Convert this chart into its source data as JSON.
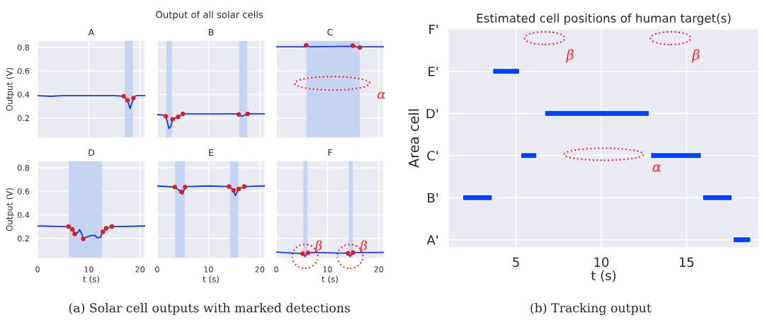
{
  "chart_data": [
    {
      "type": "line",
      "title": "A",
      "ylabel": "Output (V)",
      "xlim": [
        0,
        21
      ],
      "xticks": [
        0,
        10,
        20
      ],
      "ylim": [
        0.03,
        0.86
      ],
      "yticks": [
        0.2,
        0.4,
        0.6,
        0.8
      ],
      "grid": true,
      "tick_labels": "y",
      "annotations": [
        "Output of all solar cells",
        "(a) Solar cell outputs with marked detections"
      ],
      "bands": [
        {
          "axis": "x",
          "from": 17.0,
          "to": 18.6,
          "color": "#c5d4f0"
        }
      ],
      "series": [
        {
          "type": "line",
          "color": "#0a3cff",
          "x": [
            0,
            2.5,
            5,
            10,
            15,
            16.8,
            17.55,
            18.05,
            18.7,
            19.2,
            21
          ],
          "values": [
            0.39,
            0.385,
            0.39,
            0.39,
            0.39,
            0.385,
            0.35,
            0.28,
            0.37,
            0.39,
            0.39
          ]
        },
        {
          "type": "scatter",
          "color": "#e41a1c",
          "marker": "circle",
          "x": [
            16.8,
            17.55,
            18.7
          ],
          "values": [
            0.385,
            0.35,
            0.37
          ]
        }
      ]
    },
    {
      "type": "line",
      "title": "B",
      "xlim": [
        0,
        21
      ],
      "xticks": [
        0,
        10,
        20
      ],
      "ylim": [
        0.03,
        0.86
      ],
      "yticks": [
        0.2,
        0.4,
        0.6,
        0.8
      ],
      "grid": true,
      "tick_labels": false,
      "bands": [
        {
          "axis": "x",
          "from": 1.8,
          "to": 2.85,
          "color": "#c5d4f0"
        },
        {
          "axis": "x",
          "from": 16.0,
          "to": 17.55,
          "color": "#c5d4f0"
        }
      ],
      "series": [
        {
          "type": "line",
          "color": "#0a3cff",
          "x": [
            0,
            1.2,
            1.67,
            2.3,
            2.7,
            3.0,
            4.07,
            5.0,
            10,
            15.5,
            15.9,
            16.5,
            17.65,
            21
          ],
          "values": [
            0.23,
            0.225,
            0.215,
            0.11,
            0.13,
            0.19,
            0.21,
            0.235,
            0.235,
            0.235,
            0.23,
            0.215,
            0.235,
            0.235
          ]
        },
        {
          "type": "scatter",
          "color": "#e41a1c",
          "marker": "circle",
          "x": [
            1.67,
            3.0,
            4.07,
            5.0,
            15.9,
            17.65
          ],
          "values": [
            0.215,
            0.19,
            0.21,
            0.235,
            0.23,
            0.235
          ]
        }
      ]
    },
    {
      "type": "line",
      "title": "C",
      "xlim": [
        0,
        21
      ],
      "xticks": [
        0,
        10,
        20
      ],
      "ylim": [
        0.03,
        0.86
      ],
      "yticks": [
        0.2,
        0.4,
        0.6,
        0.8
      ],
      "grid": true,
      "tick_labels": false,
      "annotations": [
        "α"
      ],
      "bands": [
        {
          "axis": "x",
          "from": 5.9,
          "to": 16.3,
          "color": "#c5d4f0"
        }
      ],
      "series": [
        {
          "type": "line",
          "color": "#0a3cff",
          "x": [
            0,
            5.5,
            5.83,
            6.5,
            14.95,
            16.3,
            17,
            21
          ],
          "values": [
            0.805,
            0.805,
            0.818,
            0.805,
            0.81,
            0.8,
            0.805,
            0.805
          ]
        },
        {
          "type": "scatter",
          "color": "#e41a1c",
          "marker": "circle",
          "x": [
            5.83,
            14.95,
            16.3
          ],
          "values": [
            0.818,
            0.815,
            0.8
          ]
        }
      ]
    },
    {
      "type": "line",
      "title": "D",
      "xlabel": "t (s)",
      "ylabel": "Output (V)",
      "xlim": [
        0,
        21
      ],
      "xticks": [
        0,
        10,
        20
      ],
      "ylim": [
        0.03,
        0.86
      ],
      "yticks": [
        0.2,
        0.4,
        0.6,
        0.8
      ],
      "grid": true,
      "bands": [
        {
          "axis": "x",
          "from": 6.1,
          "to": 12.6,
          "color": "#c5d4f0"
        }
      ],
      "series": [
        {
          "type": "line",
          "color": "#0a3cff",
          "x": [
            0,
            5,
            6.05,
            6.8,
            7.27,
            7.9,
            8.2,
            8.6,
            8.93,
            9.5,
            10.5,
            11.2,
            11.6,
            12.3,
            12.73,
            13.4,
            14.5,
            16,
            21
          ],
          "values": [
            0.305,
            0.3,
            0.3,
            0.276,
            0.237,
            0.25,
            0.275,
            0.24,
            0.196,
            0.21,
            0.225,
            0.225,
            0.205,
            0.21,
            0.255,
            0.285,
            0.3,
            0.3,
            0.305
          ]
        },
        {
          "type": "scatter",
          "color": "#e41a1c",
          "marker": "circle",
          "x": [
            6.05,
            6.8,
            7.27,
            8.93,
            12.73,
            13.4,
            14.5
          ],
          "values": [
            0.3,
            0.276,
            0.237,
            0.196,
            0.255,
            0.285,
            0.3
          ]
        }
      ]
    },
    {
      "type": "line",
      "title": "E",
      "xlabel": "t (s)",
      "xlim": [
        0,
        21
      ],
      "xticks": [
        0,
        10,
        20
      ],
      "ylim": [
        0.03,
        0.86
      ],
      "yticks": [
        0.2,
        0.4,
        0.6,
        0.8
      ],
      "grid": true,
      "tick_labels": "x",
      "bands": [
        {
          "axis": "x",
          "from": 3.5,
          "to": 5.4,
          "color": "#c5d4f0"
        },
        {
          "axis": "x",
          "from": 14.2,
          "to": 15.8,
          "color": "#c5d4f0"
        }
      ],
      "series": [
        {
          "type": "line",
          "color": "#0a3cff",
          "x": [
            0,
            3.43,
            4.7,
            4.95,
            5.44,
            6,
            10,
            14.0,
            14.9,
            15.25,
            15.9,
            17.0,
            21
          ],
          "values": [
            0.645,
            0.636,
            0.595,
            0.575,
            0.636,
            0.64,
            0.645,
            0.64,
            0.607,
            0.563,
            0.62,
            0.64,
            0.645
          ]
        },
        {
          "type": "scatter",
          "color": "#e41a1c",
          "marker": "circle",
          "x": [
            3.43,
            4.7,
            5.44,
            14.0,
            14.9,
            15.9,
            17.0
          ],
          "values": [
            0.636,
            0.595,
            0.636,
            0.64,
            0.607,
            0.62,
            0.64
          ]
        }
      ]
    },
    {
      "type": "line",
      "title": "F",
      "xlabel": "t (s)",
      "xlim": [
        0,
        21
      ],
      "xticks": [
        0,
        10,
        20
      ],
      "ylim": [
        0.03,
        0.86
      ],
      "yticks": [
        0.2,
        0.4,
        0.6,
        0.8
      ],
      "grid": true,
      "tick_labels": "x",
      "annotations": [
        {
          "text": "β",
          "x": 5.6,
          "y": 0.047
        },
        {
          "text": "β",
          "x": 14.4,
          "y": 0.047
        }
      ],
      "bands": [
        {
          "axis": "x",
          "from": 5.3,
          "to": 6.1,
          "color": "#c5d4f0"
        },
        {
          "axis": "x",
          "from": 14.15,
          "to": 14.95,
          "color": "#c5d4f0"
        }
      ],
      "series": [
        {
          "type": "line",
          "color": "#0a3cff",
          "x": [
            0,
            5.15,
            5.6,
            6.2,
            7,
            14.0,
            14.4,
            15.0,
            21
          ],
          "values": [
            0.083,
            0.07,
            0.047,
            0.077,
            0.08,
            0.073,
            0.047,
            0.079,
            0.08
          ]
        },
        {
          "type": "scatter",
          "color": "#e41a1c",
          "marker": "circle",
          "x": [
            5.15,
            6.2,
            14.0,
            15.0
          ],
          "values": [
            0.07,
            0.077,
            0.073,
            0.079
          ]
        }
      ]
    },
    {
      "type": "bar",
      "orientation": "horizontal",
      "title": "Estimated cell positions of human target(s)",
      "xlabel": "t (s)",
      "ylabel": "Area cell",
      "xlim": [
        1.03,
        19.26
      ],
      "xticks": [
        5,
        10,
        15
      ],
      "grid": true,
      "categories": [
        "F'",
        "E'",
        "D'",
        "C'",
        "B'",
        "A'"
      ],
      "annotations": [
        "(b) Tracking output",
        "β",
        "β",
        "α"
      ],
      "series": [
        {
          "color": "#0040ff",
          "values": [
            null,
            1.58,
            6.14,
            0.94,
            1.74,
            1.03
          ],
          "base": [
            null,
            3.63,
            6.68,
            5.28,
            1.87,
            17.73
          ]
        },
        {
          "color": "#0040ff",
          "values": [
            null,
            null,
            null,
            2.98,
            1.73,
            null
          ],
          "base": [
            null,
            null,
            null,
            12.89,
            15.94,
            null
          ]
        }
      ]
    }
  ]
}
